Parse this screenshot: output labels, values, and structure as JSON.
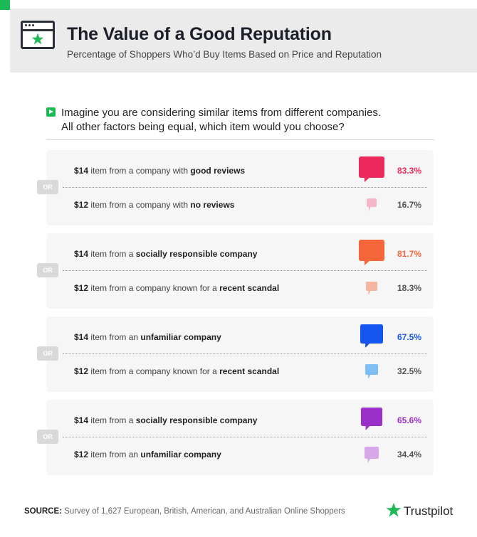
{
  "header": {
    "title": "The Value of a Good Reputation",
    "subtitle": "Percentage of Shoppers Who’d Buy Items Based on Price and Reputation"
  },
  "question": {
    "line1": "Imagine you are considering similar items from different companies.",
    "line2": "All other factors being equal, which item would you choose?"
  },
  "or_label": "OR",
  "comparisons": [
    {
      "color": "#ec2a5c",
      "light_color": "#f6b6c8",
      "a": {
        "price": "$14",
        "mid": " item from a company with ",
        "bold": "good reviews",
        "pct": "83.3%"
      },
      "b": {
        "price": "$12",
        "mid": " item from a company with ",
        "bold": "no reviews",
        "pct": "16.7%"
      }
    },
    {
      "color": "#f5673a",
      "light_color": "#f7b4a0",
      "a": {
        "price": "$14",
        "mid": " item from a ",
        "bold": "socially responsible company",
        "pct": "81.7%"
      },
      "b": {
        "price": "$12",
        "mid": " item from a company known for a ",
        "bold": "recent scandal",
        "pct": "18.3%"
      }
    },
    {
      "color": "#1556f0",
      "light_color": "#7ec0f5",
      "a": {
        "price": "$14",
        "mid": " item from an ",
        "bold": "unfamiliar company",
        "pct": "67.5%"
      },
      "b": {
        "price": "$12",
        "mid": " item from a company known for a ",
        "bold": "recent scandal",
        "pct": "32.5%"
      }
    },
    {
      "color": "#9b2fc9",
      "light_color": "#d8a7ea",
      "a": {
        "price": "$14",
        "mid": " item from a ",
        "bold": "socially responsible company",
        "pct": "65.6%"
      },
      "b": {
        "price": "$12",
        "mid": " item from an ",
        "bold": "unfamiliar company",
        "pct": "34.4%"
      }
    }
  ],
  "footer": {
    "source_label": "SOURCE:",
    "source_text": " Survey of 1,627 European, British, American, and Australian Online Shoppers",
    "brand": "Trustpilot"
  },
  "colors": {
    "brand_green": "#1db954",
    "dark": "#2b2f3a"
  },
  "icons": {
    "header": "browser-star-icon",
    "question": "play-icon",
    "bubble": "speech-bubble-icon",
    "brand": "trustpilot-star-icon"
  }
}
